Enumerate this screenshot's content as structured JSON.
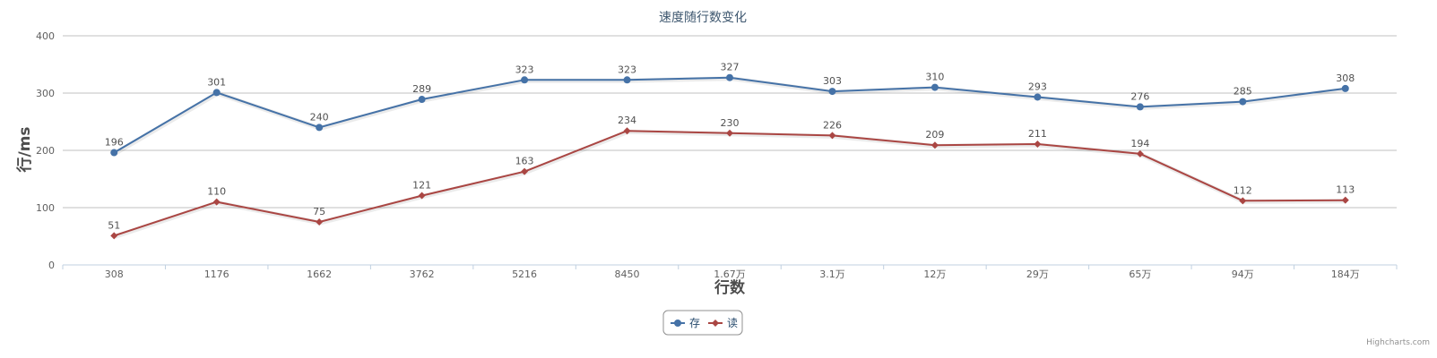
{
  "chart_data": {
    "type": "line",
    "title": "速度随行数变化",
    "xlabel": "行数",
    "ylabel": "行/ms",
    "categories": [
      "308",
      "1176",
      "1662",
      "3762",
      "5216",
      "8450",
      "1.67万",
      "3.1万",
      "12万",
      "29万",
      "65万",
      "94万",
      "184万"
    ],
    "ylim": [
      0,
      400
    ],
    "yticks": [
      0,
      100,
      200,
      300,
      400
    ],
    "grid": true,
    "legend": "bottom-center",
    "series": [
      {
        "name": "存",
        "color": "#4572A7",
        "marker": "circle",
        "values": [
          196,
          301,
          240,
          289,
          323,
          323,
          327,
          303,
          310,
          293,
          276,
          285,
          308
        ]
      },
      {
        "name": "读",
        "color": "#AA4643",
        "marker": "diamond",
        "values": [
          51,
          110,
          75,
          121,
          163,
          234,
          230,
          226,
          209,
          211,
          194,
          112,
          113
        ]
      }
    ]
  },
  "credits": "Highcharts.com"
}
